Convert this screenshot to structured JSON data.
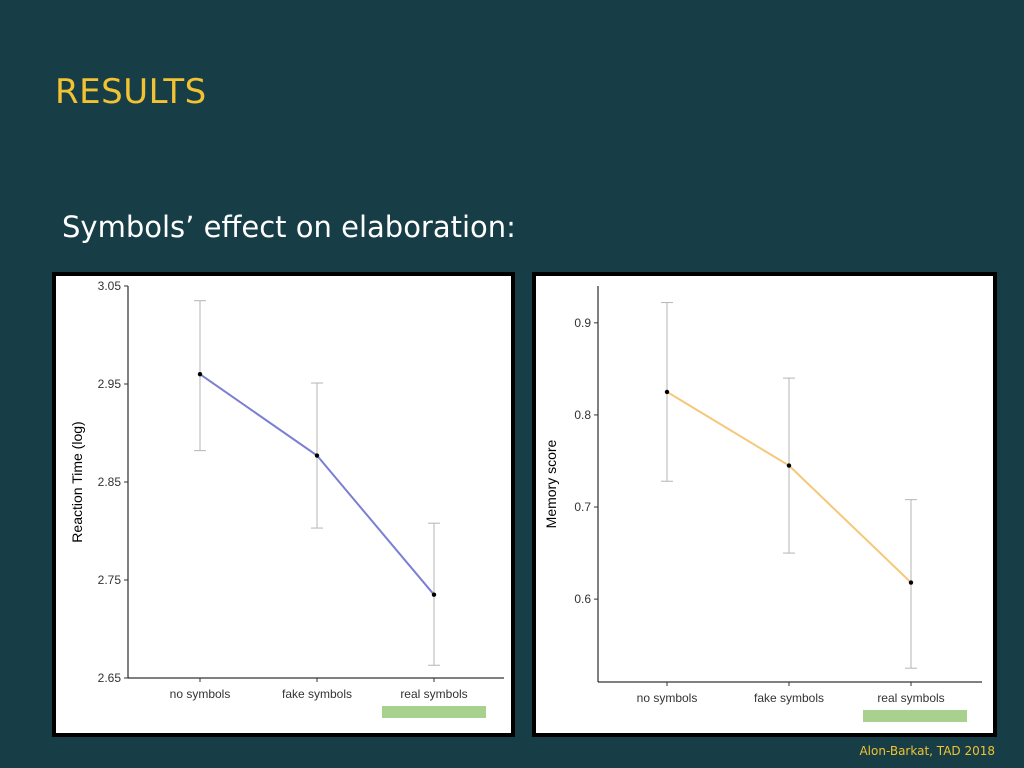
{
  "slide": {
    "title": "RESULTS",
    "subtitle": "Symbols’ effect on elaboration:",
    "credit": "Alon-Barkat, TAD 2018"
  },
  "colors": {
    "background": "#173d47",
    "title": "#f1c232",
    "highlight": "#a9d18e"
  },
  "chart_data": [
    {
      "type": "line",
      "ylabel": "Reaction Time (log)",
      "categories": [
        "no symbols",
        "fake symbols",
        "real symbols"
      ],
      "series": [
        {
          "values": [
            2.96,
            2.877,
            2.735
          ],
          "error_low": [
            2.882,
            2.803,
            2.663
          ],
          "error_high": [
            3.035,
            2.951,
            2.808
          ],
          "color": "#7b7fd4"
        }
      ],
      "ylim": [
        2.65,
        3.05
      ],
      "yticks": [
        2.65,
        2.75,
        2.85,
        2.95,
        3.05
      ],
      "ytick_labels": [
        "2.65",
        "2.75",
        "2.85",
        "2.95",
        "3.05"
      ],
      "highlight_category": "real symbols",
      "grid": false
    },
    {
      "type": "line",
      "ylabel": "Memory score",
      "categories": [
        "no symbols",
        "fake symbols",
        "real symbols"
      ],
      "series": [
        {
          "values": [
            0.825,
            0.745,
            0.618
          ],
          "error_low": [
            0.728,
            0.65,
            0.525
          ],
          "error_high": [
            0.922,
            0.84,
            0.708
          ],
          "color": "#f6c778"
        }
      ],
      "ylim": [
        0.51,
        0.94
      ],
      "yticks": [
        0.6,
        0.7,
        0.8,
        0.9
      ],
      "ytick_labels": [
        "0.6",
        "0.7",
        "0.8",
        "0.9"
      ],
      "highlight_category": "real symbols",
      "grid": false
    }
  ]
}
